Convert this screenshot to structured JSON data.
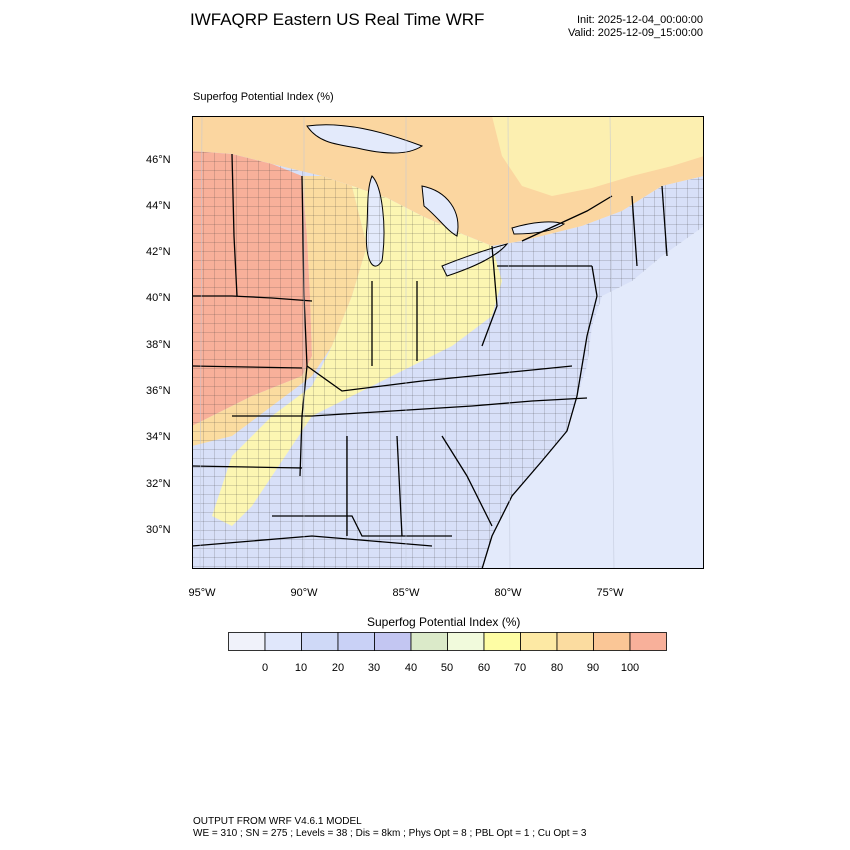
{
  "header": {
    "title": "IWFAQRP Eastern US Real Time WRF",
    "init": "Init: 2025-12-04_00:00:00",
    "valid": "Valid: 2025-12-09_15:00:00"
  },
  "plot": {
    "label": "Superfog Potential Index   (%)",
    "lat_labels": [
      "46°N",
      "44°N",
      "42°N",
      "40°N",
      "38°N",
      "36°N",
      "34°N",
      "32°N",
      "30°N"
    ],
    "lon_labels": [
      "95°W",
      "90°W",
      "85°W",
      "80°W",
      "75°W"
    ]
  },
  "colorbar": {
    "title": "Superfog Potential Index  (%)",
    "labels": [
      "0",
      "10",
      "20",
      "30",
      "40",
      "50",
      "60",
      "70",
      "80",
      "90",
      "100"
    ],
    "colors": [
      "#f0f2fa",
      "#e0e7fb",
      "#cfd9f7",
      "#c9d1f6",
      "#c3c6f2",
      "#dbeac9",
      "#f1fadc",
      "#fefda4",
      "#fde9a4",
      "#fbdca0",
      "#fac696",
      "#f8b09a"
    ]
  },
  "footer": {
    "line1": "OUTPUT FROM WRF V4.6.1 MODEL",
    "line2": "WE = 310 ; SN = 275 ; Levels = 38 ; Dis = 8km ; Phys Opt = 8 ; PBL Opt = 1 ; Cu Opt = 3"
  },
  "map_colors": {
    "ocean": "#e3eafb",
    "low": "#d8e0f8",
    "mid_yellow": "#fcf6b2",
    "orange": "#fbdca0",
    "red": "#f8b09a",
    "border": "#000000"
  }
}
